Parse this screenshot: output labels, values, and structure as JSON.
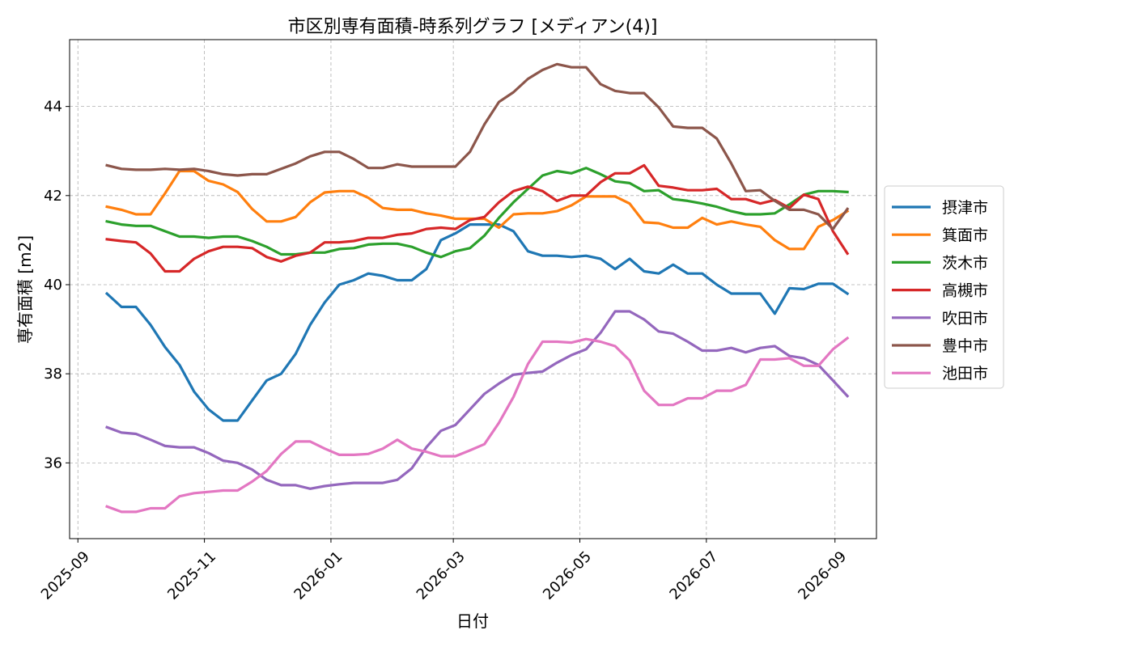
{
  "chart_data": {
    "type": "line",
    "title": "市区別専有面積-時系列グラフ [メディアン(4)]",
    "xlabel": "日付",
    "ylabel": "専有面積 [m2]",
    "x_type": "date",
    "xlim": [
      "2025-08-28",
      "2026-09-21"
    ],
    "ylim": [
      34.3,
      45.5
    ],
    "x_ticks": [
      "2025-09-01",
      "2025-11-01",
      "2026-01-01",
      "2026-03-01",
      "2026-05-01",
      "2026-07-01",
      "2026-09-01"
    ],
    "x_tick_labels": [
      "2025-09",
      "2025-11",
      "2026-01",
      "2026-03",
      "2026-05",
      "2026-07",
      "2026-09"
    ],
    "y_ticks": [
      36,
      38,
      40,
      42,
      44
    ],
    "y_tick_labels": [
      "36",
      "38",
      "40",
      "42",
      "44"
    ],
    "grid": true,
    "legend_position": "right, outside plot",
    "x": [
      "2025-09-15",
      "2025-09-22",
      "2025-09-29",
      "2025-10-06",
      "2025-10-13",
      "2025-10-20",
      "2025-10-27",
      "2025-11-03",
      "2025-11-10",
      "2025-11-17",
      "2025-11-24",
      "2025-12-01",
      "2025-12-08",
      "2025-12-15",
      "2025-12-22",
      "2025-12-29",
      "2026-01-05",
      "2026-01-12",
      "2026-01-19",
      "2026-01-26",
      "2026-02-02",
      "2026-02-09",
      "2026-02-16",
      "2026-02-23",
      "2026-03-02",
      "2026-03-09",
      "2026-03-16",
      "2026-03-23",
      "2026-03-30",
      "2026-04-06",
      "2026-04-13",
      "2026-04-20",
      "2026-04-27",
      "2026-05-04",
      "2026-05-11",
      "2026-05-18",
      "2026-05-25",
      "2026-06-01",
      "2026-06-08",
      "2026-06-15",
      "2026-06-22",
      "2026-06-29",
      "2026-07-06",
      "2026-07-13",
      "2026-07-20",
      "2026-07-27",
      "2026-08-03",
      "2026-08-10",
      "2026-08-17",
      "2026-08-24",
      "2026-08-31",
      "2026-09-07"
    ],
    "series": [
      {
        "name": "摂津市",
        "color": "#1f77b4",
        "values": [
          39.8,
          39.5,
          39.5,
          39.1,
          38.6,
          38.2,
          37.6,
          37.2,
          36.95,
          36.95,
          37.4,
          37.85,
          38.0,
          38.45,
          39.1,
          39.6,
          40.0,
          40.1,
          40.25,
          40.2,
          40.1,
          40.1,
          40.35,
          41.0,
          41.15,
          41.35,
          41.35,
          41.35,
          41.2,
          40.75,
          40.65,
          40.65,
          40.62,
          40.65,
          40.58,
          40.35,
          40.58,
          40.3,
          40.25,
          40.45,
          40.25,
          40.25,
          40.0,
          39.8,
          39.8,
          39.8,
          39.35,
          39.92,
          39.9,
          40.02,
          40.02,
          39.8
        ]
      },
      {
        "name": "箕面市",
        "color": "#ff7f0e",
        "values": [
          41.75,
          41.68,
          41.58,
          41.58,
          42.05,
          42.55,
          42.55,
          42.33,
          42.25,
          42.08,
          41.7,
          41.42,
          41.42,
          41.52,
          41.85,
          42.07,
          42.1,
          42.1,
          41.95,
          41.72,
          41.68,
          41.68,
          41.6,
          41.55,
          41.48,
          41.48,
          41.48,
          41.28,
          41.58,
          41.6,
          41.6,
          41.65,
          41.78,
          41.98,
          41.98,
          41.98,
          41.82,
          41.4,
          41.38,
          41.28,
          41.28,
          41.5,
          41.35,
          41.42,
          41.35,
          41.3,
          41.0,
          40.8,
          40.8,
          41.3,
          41.45,
          41.65
        ]
      },
      {
        "name": "茨木市",
        "color": "#2ca02c",
        "values": [
          41.42,
          41.35,
          41.32,
          41.32,
          41.2,
          41.08,
          41.08,
          41.05,
          41.08,
          41.08,
          40.98,
          40.85,
          40.68,
          40.68,
          40.72,
          40.72,
          40.8,
          40.82,
          40.9,
          40.92,
          40.92,
          40.85,
          40.72,
          40.62,
          40.75,
          40.82,
          41.1,
          41.5,
          41.85,
          42.15,
          42.45,
          42.55,
          42.5,
          42.62,
          42.48,
          42.32,
          42.28,
          42.1,
          42.12,
          41.92,
          41.88,
          41.82,
          41.75,
          41.65,
          41.58,
          41.58,
          41.6,
          41.8,
          42.02,
          42.1,
          42.1,
          42.08
        ]
      },
      {
        "name": "高槻市",
        "color": "#d62728",
        "values": [
          41.02,
          40.98,
          40.95,
          40.7,
          40.3,
          40.3,
          40.58,
          40.75,
          40.85,
          40.85,
          40.82,
          40.62,
          40.52,
          40.65,
          40.72,
          40.95,
          40.95,
          40.98,
          41.05,
          41.05,
          41.12,
          41.15,
          41.25,
          41.28,
          41.25,
          41.45,
          41.52,
          41.85,
          42.1,
          42.2,
          42.1,
          41.88,
          42.0,
          42.0,
          42.3,
          42.5,
          42.5,
          42.68,
          42.22,
          42.18,
          42.12,
          42.12,
          42.15,
          41.92,
          41.92,
          41.82,
          41.9,
          41.72,
          42.02,
          41.92,
          41.2,
          40.7
        ]
      },
      {
        "name": "吹田市",
        "color": "#9467bd",
        "values": [
          36.8,
          36.68,
          36.65,
          36.52,
          36.38,
          36.35,
          36.35,
          36.22,
          36.05,
          36.0,
          35.85,
          35.62,
          35.5,
          35.5,
          35.42,
          35.48,
          35.52,
          35.55,
          35.55,
          35.55,
          35.62,
          35.88,
          36.35,
          36.72,
          36.85,
          37.2,
          37.55,
          37.78,
          37.98,
          38.02,
          38.05,
          38.25,
          38.42,
          38.55,
          38.92,
          39.4,
          39.4,
          39.22,
          38.95,
          38.9,
          38.72,
          38.52,
          38.52,
          38.58,
          38.48,
          38.58,
          38.62,
          38.4,
          38.35,
          38.2,
          37.85,
          37.5
        ]
      },
      {
        "name": "豊中市",
        "color": "#8c564b",
        "values": [
          42.68,
          42.6,
          42.58,
          42.58,
          42.6,
          42.58,
          42.6,
          42.55,
          42.48,
          42.45,
          42.48,
          42.48,
          42.6,
          42.72,
          42.88,
          42.98,
          42.98,
          42.82,
          42.62,
          42.62,
          42.7,
          42.65,
          42.65,
          42.65,
          42.65,
          42.98,
          43.6,
          44.1,
          44.32,
          44.62,
          44.82,
          44.95,
          44.88,
          44.88,
          44.5,
          44.35,
          44.3,
          44.3,
          43.98,
          43.55,
          43.52,
          43.52,
          43.28,
          42.72,
          42.1,
          42.12,
          41.88,
          41.68,
          41.68,
          41.58,
          41.25,
          41.7
        ]
      },
      {
        "name": "池田市",
        "color": "#e377c2",
        "values": [
          35.02,
          34.9,
          34.9,
          34.98,
          34.98,
          35.25,
          35.32,
          35.35,
          35.38,
          35.38,
          35.58,
          35.82,
          36.2,
          36.48,
          36.48,
          36.32,
          36.18,
          36.18,
          36.2,
          36.32,
          36.52,
          36.32,
          36.25,
          36.15,
          36.15,
          36.28,
          36.42,
          36.9,
          37.48,
          38.22,
          38.72,
          38.72,
          38.7,
          38.78,
          38.72,
          38.62,
          38.3,
          37.62,
          37.3,
          37.3,
          37.45,
          37.45,
          37.62,
          37.62,
          37.75,
          38.32,
          38.32,
          38.35,
          38.18,
          38.18,
          38.55,
          38.8
        ]
      }
    ]
  }
}
